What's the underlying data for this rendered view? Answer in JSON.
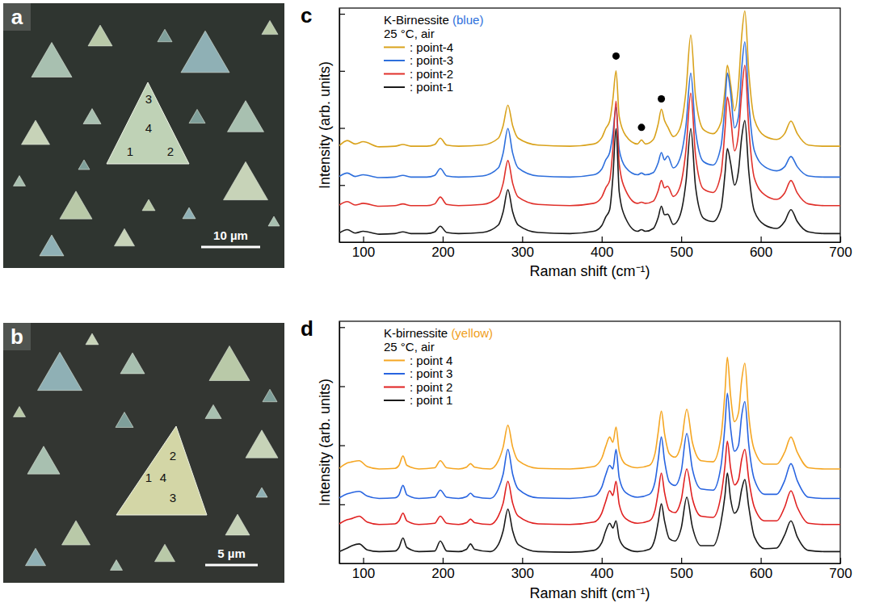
{
  "chart_data": [
    {
      "type": "line",
      "panel": "c",
      "title": "K-Birnessite (blue)",
      "color": "#2e6fdc",
      "subtitle": "25 °C, air",
      "xlabel": "Raman shift (cm⁻¹)",
      "ylabel": "Intensity (arb. units)",
      "xlim": [
        70,
        700
      ],
      "ylim": [
        0,
        4.1
      ],
      "xticks": [
        100,
        200,
        300,
        400,
        500,
        600,
        700
      ],
      "yticks": [
        1,
        2,
        3,
        4
      ],
      "tick_labels": "x",
      "legend": "top-left",
      "x": [
        70,
        80,
        90,
        100,
        120,
        140,
        150,
        160,
        180,
        190,
        197,
        205,
        220,
        250,
        270,
        276,
        282,
        288,
        295,
        320,
        360,
        390,
        400,
        405,
        410,
        414,
        418,
        422,
        430,
        445,
        450,
        455,
        465,
        471,
        475,
        479,
        483,
        490,
        498,
        506,
        512,
        518,
        528,
        540,
        550,
        555,
        558,
        562,
        567,
        572,
        576,
        580,
        585,
        592,
        605,
        620,
        630,
        638,
        646,
        660,
        680,
        700
      ],
      "series": [
        {
          "name": ": point-4",
          "color": "#d9a21b",
          "values": [
            1.69,
            1.78,
            1.72,
            1.76,
            1.67,
            1.68,
            1.71,
            1.68,
            1.68,
            1.71,
            1.82,
            1.7,
            1.68,
            1.7,
            1.82,
            2.04,
            2.4,
            2.04,
            1.82,
            1.7,
            1.68,
            1.72,
            1.83,
            1.99,
            2.12,
            2.5,
            3.0,
            2.2,
            1.87,
            1.72,
            1.79,
            1.72,
            1.8,
            2.07,
            2.33,
            2.13,
            2.02,
            1.85,
            1.98,
            2.65,
            3.63,
            2.55,
            1.97,
            1.9,
            2.1,
            2.67,
            3.1,
            2.78,
            2.3,
            2.75,
            3.6,
            4.05,
            2.98,
            2.15,
            1.86,
            1.8,
            1.9,
            2.12,
            1.9,
            1.7,
            1.68,
            1.68
          ]
        },
        {
          "name": ": point-3",
          "color": "#2e6fdc",
          "values": [
            1.15,
            1.21,
            1.15,
            1.18,
            1.13,
            1.14,
            1.17,
            1.14,
            1.14,
            1.17,
            1.29,
            1.16,
            1.14,
            1.16,
            1.3,
            1.56,
            1.99,
            1.56,
            1.3,
            1.16,
            1.14,
            1.18,
            1.28,
            1.44,
            1.57,
            1.9,
            2.36,
            1.62,
            1.31,
            1.18,
            1.21,
            1.18,
            1.22,
            1.39,
            1.57,
            1.44,
            1.51,
            1.3,
            1.45,
            2.05,
            2.96,
            1.95,
            1.41,
            1.35,
            1.68,
            2.41,
            2.96,
            2.63,
            2.0,
            2.2,
            3.03,
            3.51,
            2.44,
            1.6,
            1.32,
            1.25,
            1.32,
            1.5,
            1.32,
            1.16,
            1.14,
            1.14
          ]
        },
        {
          "name": ": point-2",
          "color": "#e0302a",
          "values": [
            0.65,
            0.71,
            0.65,
            0.68,
            0.63,
            0.64,
            0.67,
            0.64,
            0.64,
            0.67,
            0.79,
            0.66,
            0.64,
            0.66,
            0.79,
            1.03,
            1.43,
            1.03,
            0.79,
            0.66,
            0.64,
            0.68,
            0.79,
            0.95,
            1.08,
            1.63,
            2.47,
            1.37,
            0.91,
            0.68,
            0.7,
            0.68,
            0.72,
            0.9,
            1.08,
            0.95,
            0.98,
            0.8,
            0.95,
            1.62,
            2.61,
            1.52,
            0.93,
            0.87,
            1.2,
            1.97,
            2.54,
            2.21,
            1.6,
            1.9,
            2.61,
            3.1,
            1.99,
            1.12,
            0.83,
            0.75,
            0.86,
            1.08,
            0.86,
            0.67,
            0.64,
            0.64
          ]
        },
        {
          "name": ": point-1",
          "color": "#1a1a1a",
          "values": [
            0.16,
            0.22,
            0.16,
            0.19,
            0.14,
            0.15,
            0.18,
            0.15,
            0.15,
            0.18,
            0.28,
            0.17,
            0.15,
            0.17,
            0.3,
            0.53,
            0.92,
            0.53,
            0.3,
            0.17,
            0.15,
            0.19,
            0.29,
            0.44,
            0.57,
            1.13,
            1.99,
            0.88,
            0.42,
            0.19,
            0.22,
            0.19,
            0.24,
            0.43,
            0.63,
            0.48,
            0.49,
            0.31,
            0.45,
            1.06,
            1.99,
            0.97,
            0.42,
            0.36,
            0.59,
            1.19,
            1.64,
            1.39,
            1.0,
            1.25,
            1.83,
            2.13,
            1.23,
            0.54,
            0.3,
            0.24,
            0.36,
            0.57,
            0.36,
            0.18,
            0.15,
            0.15
          ]
        }
      ],
      "annotations": [
        {
          "x": 418,
          "y": 3.26
        },
        {
          "x": 450,
          "y": 2.01
        },
        {
          "x": 475,
          "y": 2.51
        }
      ]
    },
    {
      "type": "line",
      "panel": "d",
      "title": "K-birnessite (yellow)",
      "color": "#f0a020",
      "subtitle": "25 °C, air",
      "xlabel": "Raman shift (cm⁻¹)",
      "ylabel": "Intensity (arb. units)",
      "xlim": [
        70,
        700
      ],
      "ylim": [
        0,
        4.1
      ],
      "xticks": [
        100,
        200,
        300,
        400,
        500,
        600,
        700
      ],
      "yticks": [
        1,
        2,
        3,
        4
      ],
      "tick_labels": "x",
      "legend": "top-left",
      "x": [
        70,
        80,
        86,
        95,
        105,
        120,
        140,
        145,
        150,
        155,
        170,
        190,
        197,
        205,
        220,
        230,
        235,
        240,
        260,
        270,
        276,
        282,
        288,
        295,
        320,
        360,
        390,
        400,
        405,
        410,
        414,
        418,
        422,
        430,
        445,
        460,
        467,
        471,
        475,
        479,
        485,
        492,
        500,
        507,
        514,
        525,
        540,
        550,
        555,
        558,
        562,
        567,
        572,
        576,
        580,
        585,
        592,
        605,
        620,
        630,
        638,
        646,
        660,
        680,
        700
      ],
      "series": [
        {
          "name": ": point 4",
          "color": "#f5a623",
          "values": [
            1.61,
            1.7,
            1.72,
            1.74,
            1.64,
            1.6,
            1.61,
            1.66,
            1.82,
            1.66,
            1.6,
            1.62,
            1.74,
            1.62,
            1.6,
            1.63,
            1.69,
            1.63,
            1.6,
            1.74,
            1.97,
            2.34,
            1.97,
            1.74,
            1.61,
            1.6,
            1.64,
            1.78,
            1.98,
            2.14,
            2.05,
            2.31,
            1.9,
            1.68,
            1.62,
            1.66,
            1.86,
            2.22,
            2.58,
            2.2,
            1.86,
            1.8,
            2.03,
            2.61,
            2.05,
            1.74,
            1.72,
            2.15,
            2.9,
            3.49,
            2.85,
            2.4,
            2.55,
            3.1,
            3.39,
            2.5,
            1.92,
            1.68,
            1.68,
            1.88,
            2.14,
            1.88,
            1.62,
            1.6,
            1.6
          ]
        },
        {
          "name": ": point 3",
          "color": "#2864e0",
          "values": [
            1.11,
            1.18,
            1.2,
            1.22,
            1.14,
            1.1,
            1.11,
            1.16,
            1.32,
            1.16,
            1.1,
            1.12,
            1.24,
            1.12,
            1.1,
            1.13,
            1.19,
            1.13,
            1.1,
            1.26,
            1.51,
            1.93,
            1.51,
            1.26,
            1.11,
            1.1,
            1.14,
            1.29,
            1.5,
            1.66,
            1.6,
            1.93,
            1.45,
            1.2,
            1.12,
            1.17,
            1.38,
            1.75,
            2.14,
            1.74,
            1.38,
            1.32,
            1.56,
            2.2,
            1.6,
            1.26,
            1.24,
            1.65,
            2.34,
            2.88,
            2.3,
            1.9,
            2.0,
            2.5,
            2.74,
            2.0,
            1.42,
            1.17,
            1.17,
            1.4,
            1.69,
            1.4,
            1.12,
            1.1,
            1.1
          ]
        },
        {
          "name": ": point 2",
          "color": "#e02020",
          "values": [
            0.67,
            0.74,
            0.76,
            0.8,
            0.7,
            0.66,
            0.67,
            0.72,
            0.85,
            0.72,
            0.66,
            0.68,
            0.8,
            0.68,
            0.66,
            0.69,
            0.75,
            0.69,
            0.66,
            0.8,
            1.02,
            1.39,
            1.02,
            0.8,
            0.67,
            0.66,
            0.7,
            0.85,
            1.05,
            1.23,
            1.15,
            1.39,
            1.0,
            0.76,
            0.68,
            0.72,
            0.9,
            1.2,
            1.53,
            1.2,
            0.9,
            0.86,
            1.08,
            1.6,
            1.1,
            0.8,
            0.78,
            1.15,
            1.65,
            2.07,
            1.62,
            1.33,
            1.42,
            1.76,
            1.93,
            1.42,
            0.95,
            0.72,
            0.72,
            0.95,
            1.23,
            0.95,
            0.68,
            0.66,
            0.66
          ]
        },
        {
          "name": ": point 1",
          "color": "#1a1a1a",
          "values": [
            0.2,
            0.26,
            0.3,
            0.33,
            0.23,
            0.2,
            0.21,
            0.27,
            0.43,
            0.27,
            0.2,
            0.21,
            0.38,
            0.21,
            0.2,
            0.24,
            0.33,
            0.24,
            0.2,
            0.32,
            0.55,
            0.92,
            0.55,
            0.32,
            0.2,
            0.19,
            0.22,
            0.35,
            0.55,
            0.68,
            0.6,
            0.72,
            0.42,
            0.26,
            0.2,
            0.24,
            0.42,
            0.7,
            1.01,
            0.72,
            0.42,
            0.38,
            0.6,
            1.12,
            0.62,
            0.3,
            0.3,
            0.7,
            1.15,
            1.53,
            1.1,
            0.85,
            0.95,
            1.25,
            1.42,
            0.95,
            0.45,
            0.25,
            0.26,
            0.48,
            0.72,
            0.45,
            0.22,
            0.2,
            0.2
          ]
        }
      ]
    }
  ],
  "images": [
    {
      "panel": "a",
      "points": [
        "1",
        "2",
        "3",
        "4"
      ],
      "scale_bar": "10 µm"
    },
    {
      "panel": "b",
      "points": [
        "1",
        "2",
        "3",
        "4"
      ],
      "scale_bar": "5 µm"
    }
  ]
}
